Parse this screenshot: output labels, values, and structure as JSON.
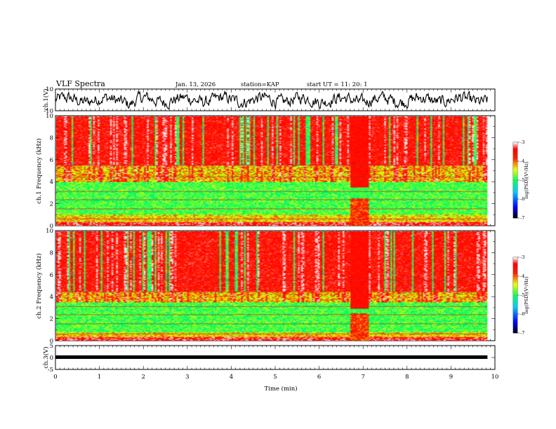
{
  "header": {
    "title": "VLF Spectra",
    "date": "Jan. 13, 2026",
    "station": "station=KAP",
    "start": "start UT =  11: 20: 1"
  },
  "colors": {
    "axis": "#000000",
    "trace": "#000000",
    "colormap": [
      "#000000",
      "#0000ff",
      "#00c8ff",
      "#00ff60",
      "#f0ff00",
      "#ff0000",
      "#ffffff"
    ]
  },
  "chart_data": [
    {
      "type": "line",
      "name": "ch1-timeseries",
      "ylabel": "ch.1(V)",
      "ylim": [
        -10,
        10
      ],
      "yticks": [
        10,
        -10
      ],
      "xlim": [
        0,
        10
      ],
      "t_end": 9.83,
      "description_values": "noisy waveform fluctuating roughly between -8 and 8 V, mean near 0"
    },
    {
      "type": "heatmap",
      "name": "ch1-spectrogram",
      "ylabel": "ch.1 Frequency (kHz)",
      "ylim": [
        0,
        10
      ],
      "yticks": [
        "0",
        "2",
        "4",
        "6",
        "8",
        "10"
      ],
      "xlim": [
        0,
        10
      ],
      "t_end": 9.83,
      "colorbar": {
        "label": "log(PSD)(V²/Hz)",
        "range": [
          -7,
          -3
        ],
        "ticks": [
          "-3",
          "-4",
          "-5",
          "-6",
          "-7"
        ]
      },
      "features": {
        "strong_above_khz": 5.5,
        "moderate_band_khz": [
          1.0,
          4.0
        ],
        "disturbance_min": [
          6.7,
          7.1
        ]
      }
    },
    {
      "type": "heatmap",
      "name": "ch2-spectrogram",
      "ylabel": "ch.2 Frequency (kHz)",
      "ylim": [
        0,
        10
      ],
      "yticks": [
        "0",
        "2",
        "4",
        "6",
        "8",
        "10"
      ],
      "xlim": [
        0,
        10
      ],
      "t_end": 9.83,
      "colorbar": {
        "label": "log(PSD)(V²/Hz)",
        "range": [
          -7,
          -3
        ],
        "ticks": [
          "-3",
          "-4",
          "-5",
          "-6",
          "-7"
        ]
      },
      "features": {
        "strong_above_khz": 4.5,
        "moderate_band_khz": [
          0.8,
          3.5
        ],
        "disturbance_min": [
          6.7,
          7.1
        ]
      }
    },
    {
      "type": "line",
      "name": "ch3-timeseries",
      "ylabel": "ch.3(V)",
      "ylim": [
        -5,
        5
      ],
      "yticks": [
        "5",
        "0",
        "-5"
      ],
      "xlim": [
        0,
        10
      ],
      "t_end": 9.83,
      "level": 0.3
    }
  ],
  "xaxis": {
    "label": "Time (min)",
    "ticks": [
      "0",
      "1",
      "2",
      "3",
      "4",
      "5",
      "6",
      "7",
      "8",
      "9",
      "10"
    ]
  }
}
